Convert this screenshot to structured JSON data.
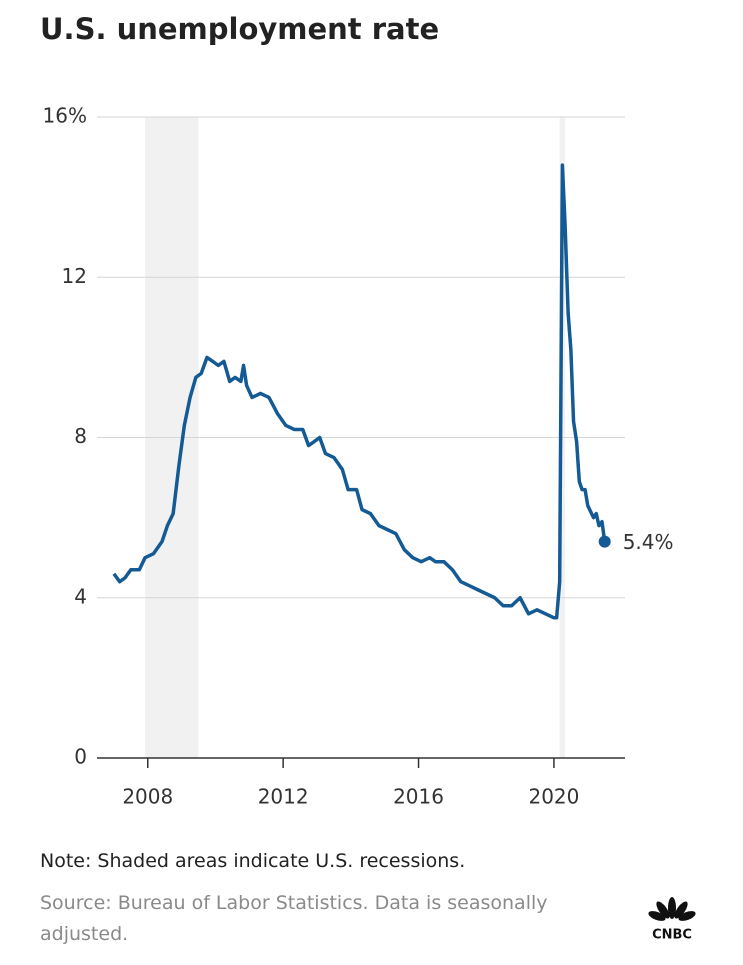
{
  "chart_data": {
    "type": "line",
    "title": "U.S. unemployment rate",
    "x": [
      2007.0,
      2007.17,
      2007.33,
      2007.5,
      2007.75,
      2007.92,
      2008.17,
      2008.42,
      2008.58,
      2008.75,
      2008.92,
      2009.08,
      2009.25,
      2009.42,
      2009.58,
      2009.75,
      2009.92,
      2010.08,
      2010.25,
      2010.42,
      2010.58,
      2010.75,
      2010.83,
      2010.92,
      2011.08,
      2011.33,
      2011.58,
      2011.83,
      2012.08,
      2012.33,
      2012.58,
      2012.75,
      2012.92,
      2013.08,
      2013.25,
      2013.5,
      2013.75,
      2013.92,
      2014.17,
      2014.33,
      2014.58,
      2014.83,
      2015.08,
      2015.33,
      2015.58,
      2015.83,
      2016.08,
      2016.33,
      2016.5,
      2016.75,
      2017.0,
      2017.25,
      2017.5,
      2017.75,
      2018.0,
      2018.25,
      2018.5,
      2018.75,
      2019.0,
      2019.25,
      2019.5,
      2019.75,
      2020.0,
      2020.08,
      2020.17,
      2020.25,
      2020.33,
      2020.42,
      2020.5,
      2020.58,
      2020.67,
      2020.75,
      2020.83,
      2020.92,
      2021.0,
      2021.17,
      2021.25,
      2021.33,
      2021.42,
      2021.5
    ],
    "series": [
      {
        "color": "#145a94",
        "values": [
          4.6,
          4.4,
          4.5,
          4.7,
          4.7,
          5.0,
          5.1,
          5.4,
          5.8,
          6.1,
          7.3,
          8.3,
          9.0,
          9.5,
          9.6,
          10.0,
          9.9,
          9.8,
          9.9,
          9.4,
          9.5,
          9.4,
          9.8,
          9.3,
          9.0,
          9.1,
          9.0,
          8.6,
          8.3,
          8.2,
          8.2,
          7.8,
          7.9,
          8.0,
          7.6,
          7.5,
          7.2,
          6.7,
          6.7,
          6.2,
          6.1,
          5.8,
          5.7,
          5.6,
          5.2,
          5.0,
          4.9,
          5.0,
          4.9,
          4.9,
          4.7,
          4.4,
          4.3,
          4.2,
          4.1,
          4.0,
          3.8,
          3.8,
          4.0,
          3.6,
          3.7,
          3.6,
          3.5,
          3.5,
          4.4,
          14.8,
          13.3,
          11.1,
          10.2,
          8.4,
          7.9,
          6.9,
          6.7,
          6.7,
          6.3,
          6.0,
          6.1,
          5.8,
          5.9,
          5.4
        ],
        "value_labels": [
          null,
          null,
          null,
          null,
          null,
          null,
          null,
          null,
          null,
          null,
          null,
          null,
          null,
          null,
          null,
          null,
          null,
          null,
          null,
          null,
          null,
          null,
          null,
          null,
          null,
          null,
          null,
          null,
          null,
          null,
          null,
          null,
          null,
          null,
          null,
          null,
          null,
          null,
          null,
          null,
          null,
          null,
          null,
          null,
          null,
          null,
          null,
          null,
          null,
          null,
          null,
          null,
          null,
          null,
          null,
          null,
          null,
          null,
          null,
          null,
          null,
          null,
          null,
          null,
          null,
          null,
          null,
          null,
          null,
          null,
          null,
          null,
          null,
          null,
          null,
          null,
          null,
          null,
          null,
          "5.4%"
        ]
      }
    ],
    "recessions": [
      [
        2007.92,
        2009.5
      ],
      [
        2020.17,
        2020.33
      ]
    ],
    "xlim": [
      2006.5,
      2022.1
    ],
    "xticks": [
      2008,
      2012,
      2016,
      2020
    ],
    "ylim": [
      0,
      16
    ],
    "yticks": [
      {
        "value": 16,
        "label": "16%"
      },
      12,
      8,
      4,
      0
    ],
    "grid": true,
    "note": "Note: Shaded areas indicate U.S. recessions.",
    "source": "Source: Bureau of Labor Statistics. Data is seasonally adjusted.",
    "logo": "CNBC"
  }
}
